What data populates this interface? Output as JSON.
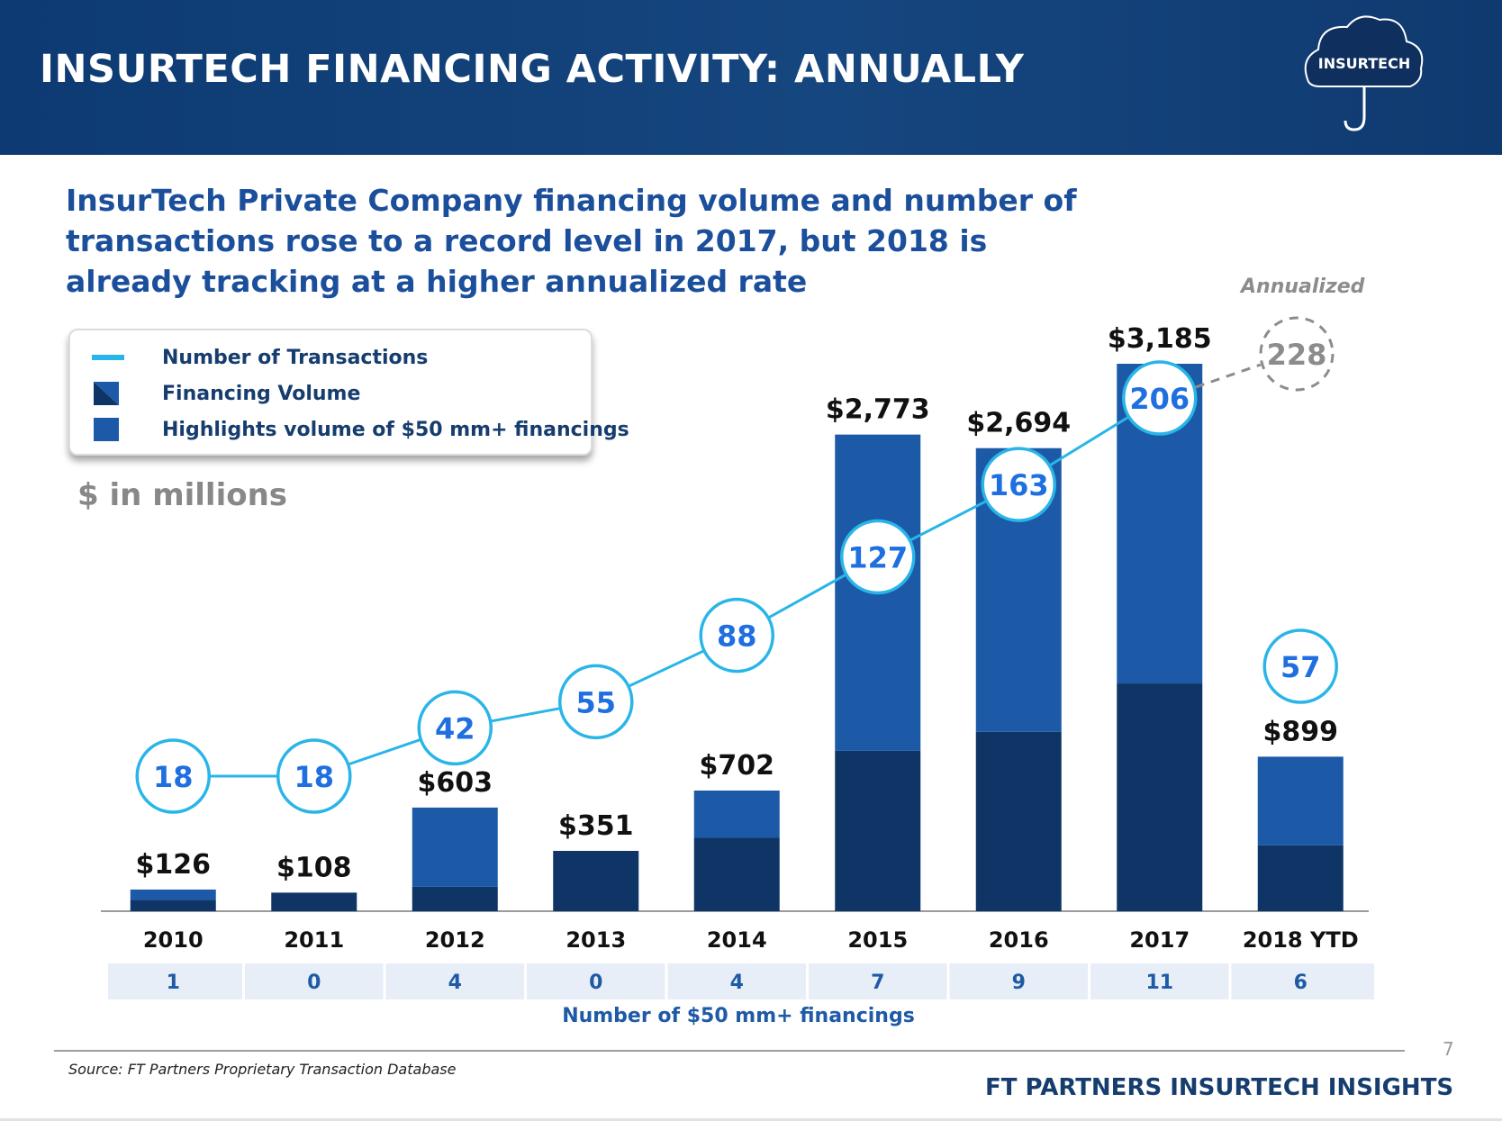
{
  "header": {
    "title": "INSURTECH FINANCING ACTIVITY: ANNUALLY",
    "logo_text": "INSURTECH"
  },
  "headline": "InsurTech Private Company financing volume and number of transactions rose to a record level in 2017, but 2018 is already tracking at a higher annualized rate",
  "legend": {
    "items": [
      {
        "label": "Number of Transactions",
        "color": "#29b5e8"
      },
      {
        "label": "Financing Volume",
        "color": "#0f3566"
      },
      {
        "label": "Highlights volume of $50 mm+ financings",
        "color": "#1c5aa8"
      }
    ]
  },
  "units_label": "$ in millions",
  "annualized_label": "Annualized",
  "chart_data": {
    "type": "bar",
    "categories": [
      "2010",
      "2011",
      "2012",
      "2013",
      "2014",
      "2015",
      "2016",
      "2017",
      "2018 YTD"
    ],
    "value_labels": [
      "$126",
      "$108",
      "$603",
      "$351",
      "$702",
      "$2,773",
      "$2,694",
      "$3,185",
      "$899"
    ],
    "series": [
      {
        "name": "Financing Volume",
        "values": [
          126,
          108,
          603,
          351,
          702,
          2773,
          2694,
          3185,
          899
        ]
      },
      {
        "name": "Highlights volume of $50 mm+ financings",
        "values": [
          60,
          0,
          460,
          0,
          275,
          1840,
          1650,
          1860,
          515
        ]
      },
      {
        "name": "Number of Transactions",
        "values": [
          18,
          18,
          42,
          55,
          88,
          127,
          163,
          206,
          57
        ]
      }
    ],
    "annualized_transactions": 228,
    "fifty_mm_financings": {
      "label": "Number of $50 mm+ financings",
      "values": [
        "1",
        "0",
        "4",
        "0",
        "4",
        "7",
        "9",
        "11",
        "6"
      ]
    },
    "ylim": [
      0,
      3300
    ],
    "colors": {
      "base": "#0f3566",
      "highlight": "#1c5aa8",
      "line": "#29b5e8",
      "marker_text": "#1f6fe0",
      "annualized": "#8c8c8c"
    }
  },
  "footer": {
    "source": "Source: FT Partners Proprietary Transaction Database",
    "brand": "FT PARTNERS INSURTECH INSIGHTS",
    "page_number": "7"
  }
}
